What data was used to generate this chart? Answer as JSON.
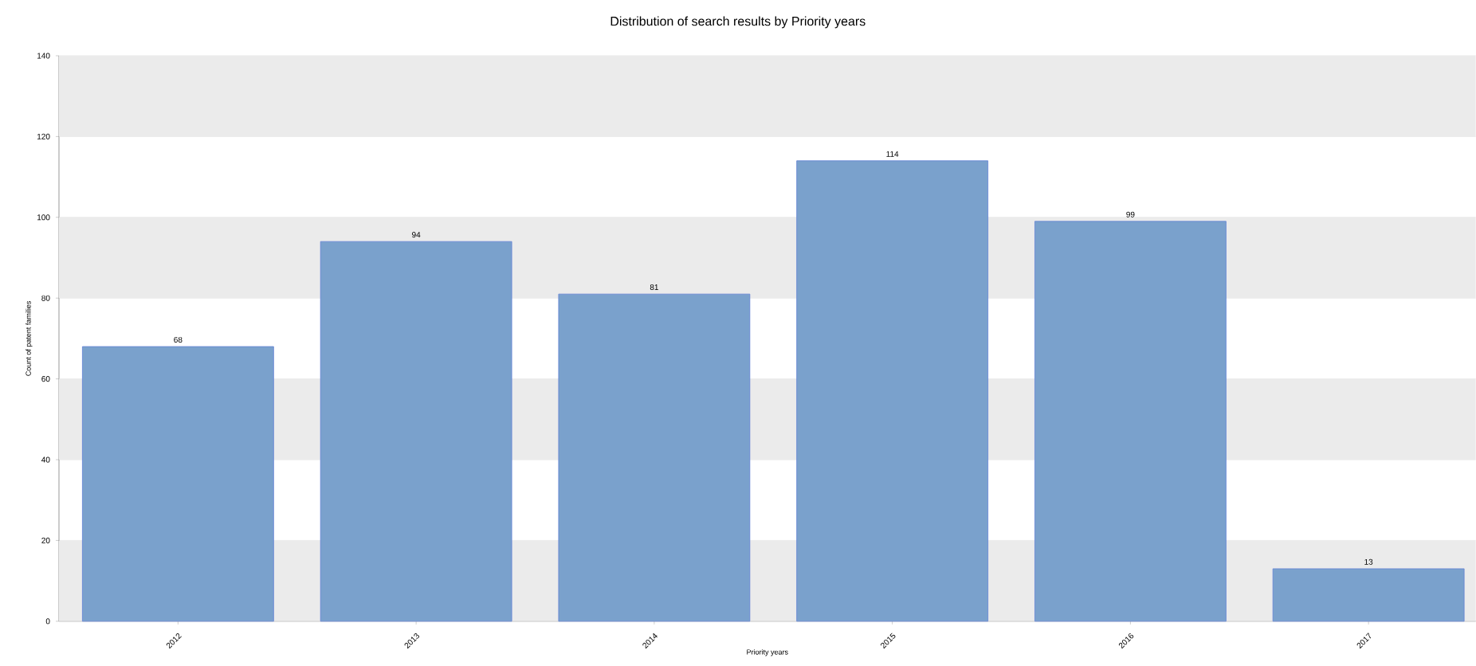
{
  "chart_data": {
    "type": "bar",
    "title": "Distribution of search results by Priority years",
    "xlabel": "Priority years",
    "ylabel": "Count of patent families",
    "categories": [
      "2012",
      "2013",
      "2014",
      "2015",
      "2016",
      "2017"
    ],
    "values": [
      68,
      94,
      81,
      114,
      99,
      13
    ],
    "color": "#7aa1cc",
    "ylim": [
      0,
      140
    ],
    "yticks": [
      0,
      20,
      40,
      60,
      80,
      100,
      120,
      140
    ],
    "grid": "y",
    "data_labels": true
  }
}
